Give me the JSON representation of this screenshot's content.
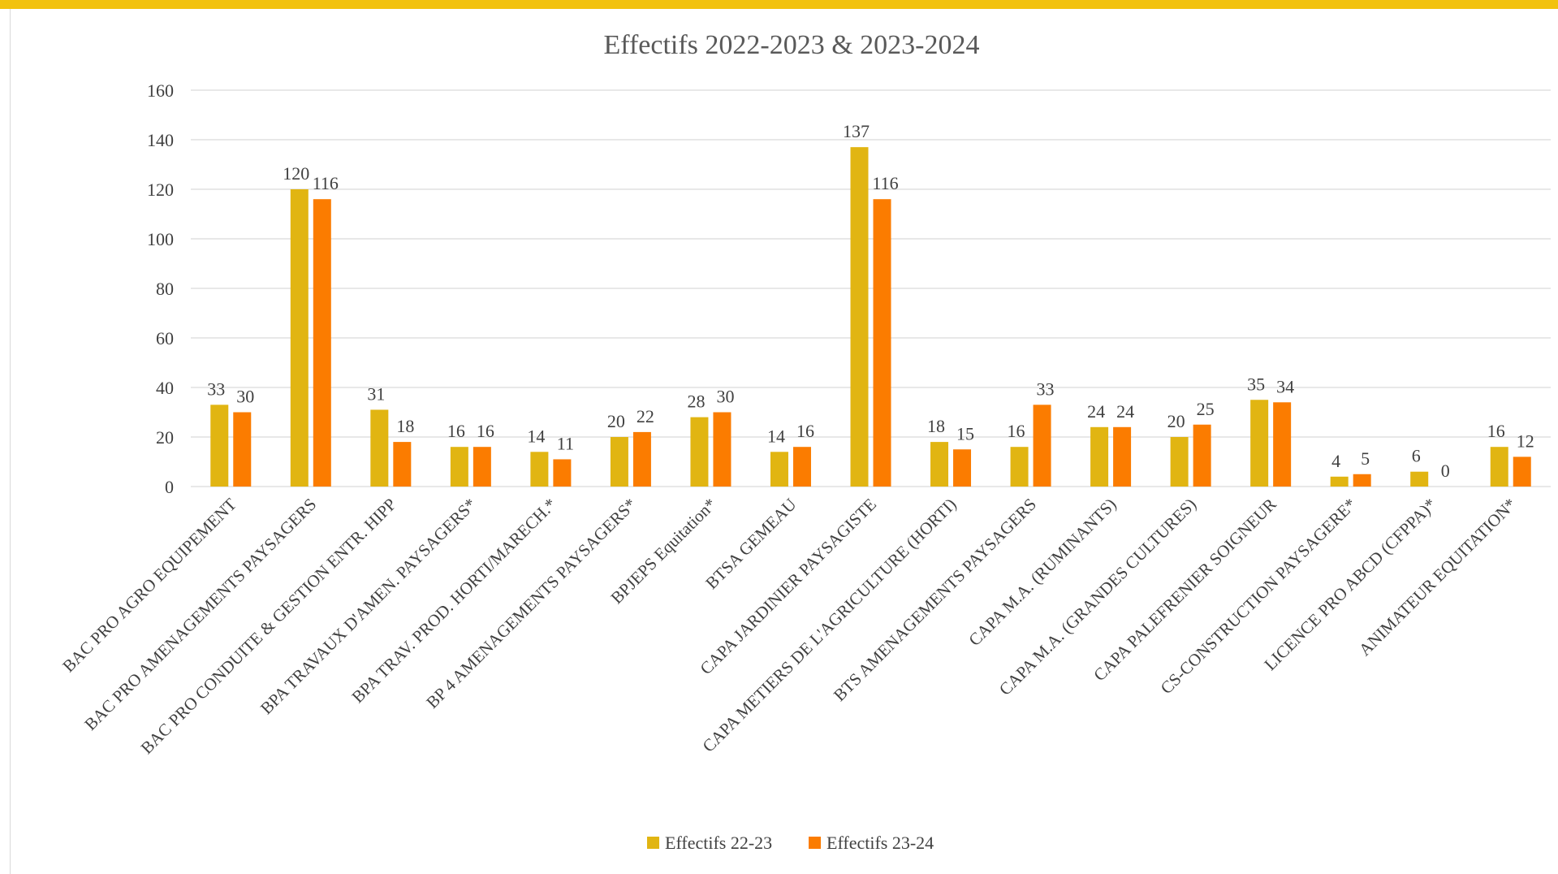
{
  "colors": {
    "top_bar": "#f2c20f",
    "series1": "#e1b512",
    "series2": "#fb7c00",
    "grid": "#d9d9d9",
    "text": "#404040",
    "title": "#595959"
  },
  "chart_data": {
    "type": "bar",
    "title": "Effectifs 2022-2023 & 2023-2024",
    "xlabel": "",
    "ylabel": "",
    "ylim": [
      0,
      160
    ],
    "yticks": [
      0,
      20,
      40,
      60,
      80,
      100,
      120,
      140,
      160
    ],
    "grid": true,
    "legend_position": "bottom",
    "categories": [
      "BAC PRO AGRO EQUIPEMENT",
      "BAC PRO AMENAGEMENTS PAYSAGERS",
      "BAC PRO CONDUITE & GESTION ENTR. HIPP",
      "BPA TRAVAUX D'AMEN. PAYSAGERS*",
      "BPA TRAV. PROD. HORTI/MARECH.*",
      "BP 4 AMENAGEMENTS PAYSAGERS*",
      "BPJEPS Equitation*",
      "BTSA GEMEAU",
      "CAPA JARDINIER PAYSAGISTE",
      "CAPA METIERS DE L'AGRICULTURE (HORTI)",
      "BTS AMENAGEMENTS PAYSAGERS",
      "CAPA M.A. (RUMINANTS)",
      "CAPA M.A. (GRANDES CULTURES)",
      "CAPA PALEFRENIER SOIGNEUR",
      "CS-CONSTRUCTION PAYSAGERE*",
      "LICENCE PRO ABCD (CFPPA)*",
      "ANIMATEUR EQUITATION*"
    ],
    "series": [
      {
        "name": "Effectifs 22-23",
        "color": "#e1b512",
        "values": [
          33,
          120,
          31,
          16,
          14,
          20,
          28,
          14,
          137,
          18,
          16,
          24,
          20,
          35,
          4,
          6,
          16
        ]
      },
      {
        "name": "Effectifs 23-24",
        "color": "#fb7c00",
        "values": [
          30,
          116,
          18,
          16,
          11,
          22,
          30,
          16,
          116,
          15,
          33,
          24,
          25,
          34,
          5,
          0,
          12
        ]
      }
    ]
  }
}
